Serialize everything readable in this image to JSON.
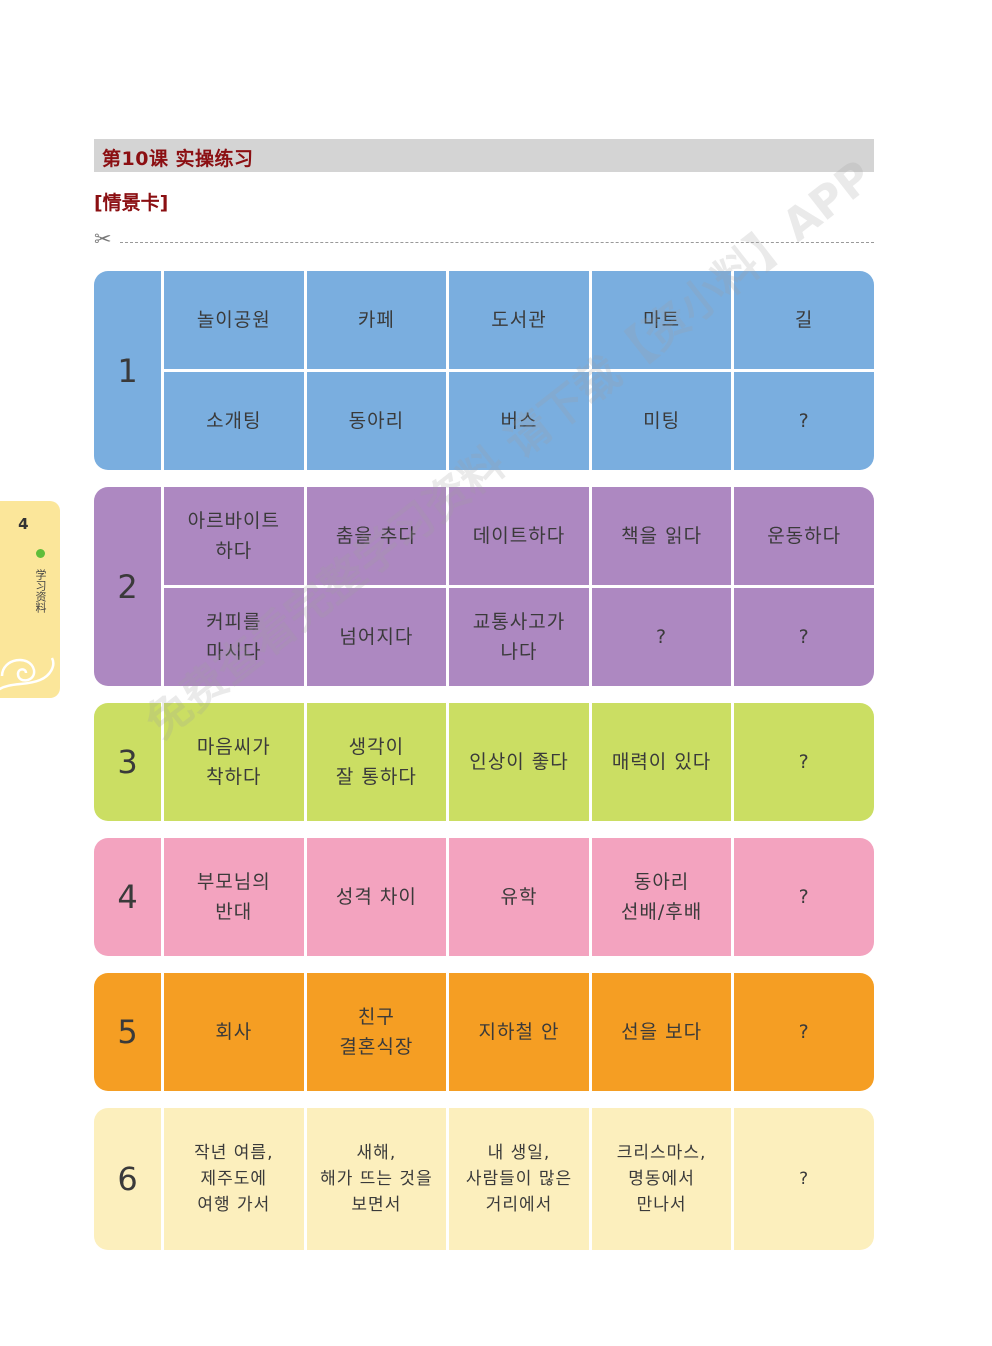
{
  "header": {
    "title": "第10课  实操练习",
    "subtitle": "[情景卡]"
  },
  "side_tab": {
    "page_number": "4",
    "label": "学习资料"
  },
  "watermark": "免费查看完整学习资料 请下载【资小料】APP",
  "cards": [
    {
      "number": "1",
      "color": "#7aaedf",
      "rows": [
        [
          "놀이공원",
          "카페",
          "도서관",
          "마트",
          "길"
        ],
        [
          "소개팅",
          "동아리",
          "버스",
          "미팅",
          "?"
        ]
      ]
    },
    {
      "number": "2",
      "color": "#ad88c1",
      "rows": [
        [
          "아르바이트\n하다",
          "춤을 추다",
          "데이트하다",
          "책을 읽다",
          "운동하다"
        ],
        [
          "커피를\n마시다",
          "넘어지다",
          "교통사고가\n나다",
          "?",
          "?"
        ]
      ]
    },
    {
      "number": "3",
      "color": "#cbde63",
      "rows": [
        [
          "마음씨가\n착하다",
          "생각이\n잘 통하다",
          "인상이 좋다",
          "매력이 있다",
          "?"
        ]
      ]
    },
    {
      "number": "4",
      "color": "#f3a3bf",
      "rows": [
        [
          "부모님의\n반대",
          "성격 차이",
          "유학",
          "동아리\n선배/후배",
          "?"
        ]
      ]
    },
    {
      "number": "5",
      "color": "#f59e23",
      "rows": [
        [
          "회사",
          "친구\n결혼식장",
          "지하철 안",
          "선을 보다",
          "?"
        ]
      ]
    },
    {
      "number": "6",
      "color": "#fcefbd",
      "rows": [
        [
          "작년 여름,\n제주도에\n여행 가서",
          "새해,\n해가 뜨는 것을\n보면서",
          "내 생일,\n사람들이 많은\n거리에서",
          "크리스마스,\n명동에서\n만나서",
          "?"
        ]
      ]
    }
  ]
}
